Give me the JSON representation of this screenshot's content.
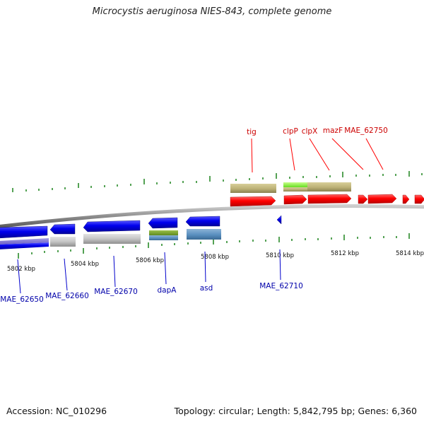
{
  "title": "Microcystis aeruginosa NIES-843, complete genome",
  "footer": {
    "accession": "Accession: NC_010296",
    "summary": "Topology: circular; Length: 5,842,795 bp; Genes: 6,360"
  },
  "colors": {
    "forward_gene": "#ff0000",
    "reverse_gene": "#0000ee",
    "label_forward": "#cc0000",
    "label_reverse": "#0000aa",
    "tick": "#2a8a2a",
    "backbone": "#888888"
  },
  "axis": {
    "unit": "kbp",
    "tick_labels": [
      "5802 kbp",
      "5804 kbp",
      "5806 kbp",
      "5808 kbp",
      "5810 kbp",
      "5812 kbp",
      "5814 kbp"
    ]
  },
  "genes_forward": [
    {
      "label": "tig"
    },
    {
      "label": "clpP"
    },
    {
      "label": "clpX"
    },
    {
      "label": "mazF"
    },
    {
      "label": "MAE_62750"
    }
  ],
  "genes_reverse": [
    {
      "label": "MAE_62650"
    },
    {
      "label": "MAE_62660"
    },
    {
      "label": "MAE_62670"
    },
    {
      "label": "dapA"
    },
    {
      "label": "asd"
    },
    {
      "label": "MAE_62710"
    }
  ]
}
